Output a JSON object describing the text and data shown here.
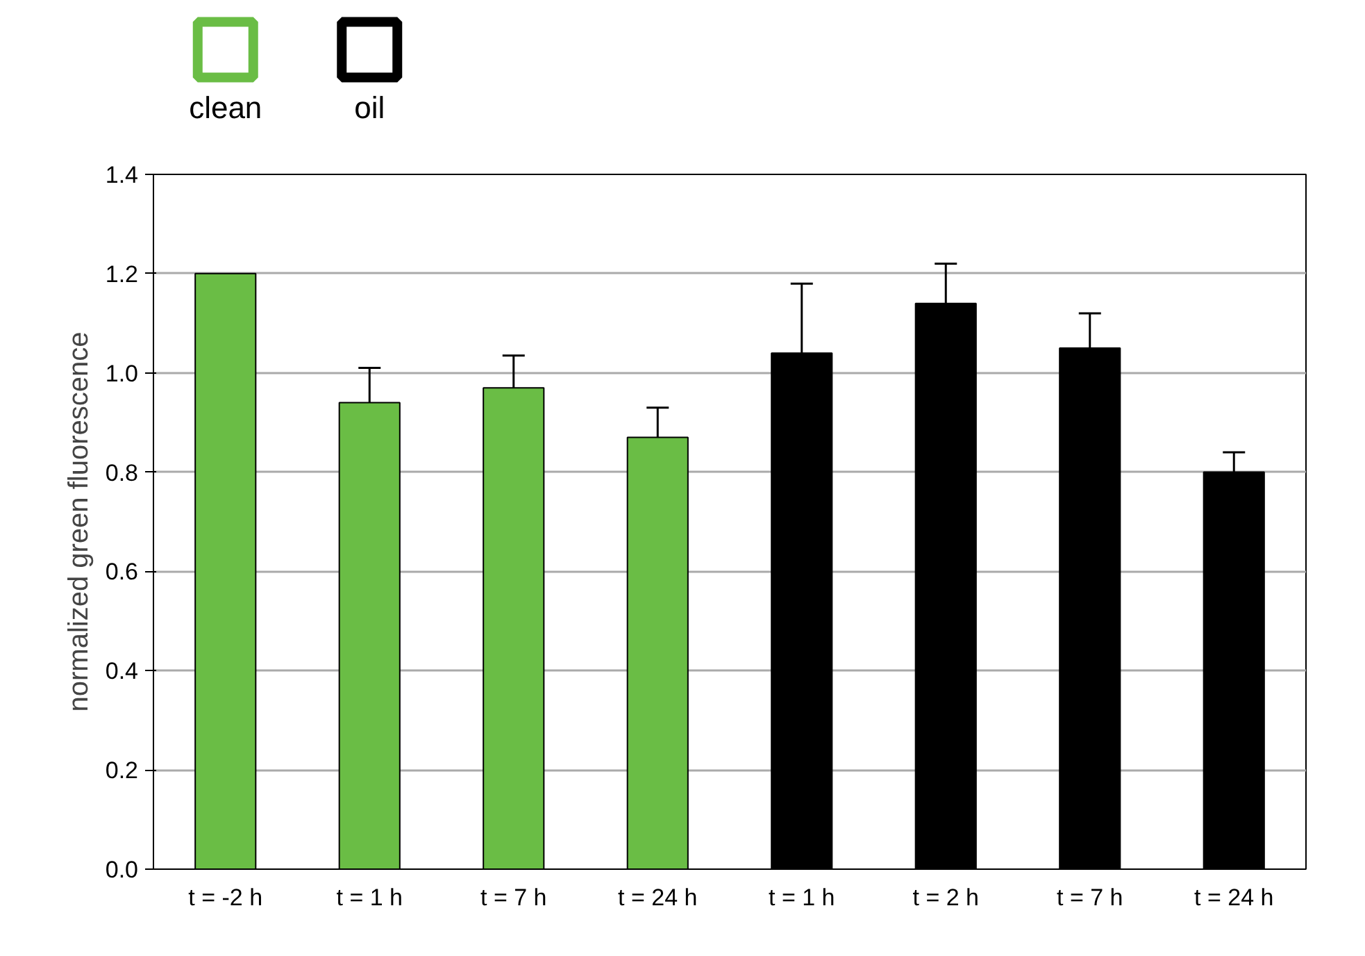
{
  "chart_data": {
    "type": "bar",
    "ylabel": "normalized green fluorescence",
    "categories": [
      "t = -2 h",
      "t = 1 h",
      "t = 7 h",
      "t = 24 h",
      "t = 1 h",
      "t = 2 h",
      "t = 7 h",
      "t = 24 h"
    ],
    "series": [
      {
        "name": "clean",
        "color": "#6abd45",
        "values": [
          1.2,
          0.94,
          0.97,
          0.87,
          null,
          null,
          null,
          null
        ],
        "errors": [
          null,
          [
            0.94,
            1.01
          ],
          [
            0.97,
            1.035
          ],
          [
            0.87,
            0.93
          ],
          null,
          null,
          null,
          null
        ]
      },
      {
        "name": "oil",
        "color": "#000000",
        "values": [
          null,
          null,
          null,
          null,
          1.04,
          1.14,
          1.05,
          0.8
        ],
        "errors": [
          null,
          null,
          null,
          null,
          [
            1.04,
            1.18
          ],
          [
            1.14,
            1.22
          ],
          [
            1.05,
            1.12
          ],
          [
            0.8,
            0.84
          ]
        ]
      }
    ],
    "ylim": [
      0,
      1.4
    ],
    "yticks": [
      {
        "value": 0,
        "label": "0.0"
      },
      {
        "value": 0.2,
        "label": "0.2"
      },
      {
        "value": 0.4,
        "label": "0.4"
      },
      {
        "value": 0.6,
        "label": "0.6"
      },
      {
        "value": 0.8,
        "label": "0.8"
      },
      {
        "value": 1,
        "label": "1.0"
      },
      {
        "value": 1.2,
        "label": "1.2"
      },
      {
        "value": 1.4,
        "label": "1.4"
      }
    ],
    "grid": "y",
    "legend": "top left"
  }
}
